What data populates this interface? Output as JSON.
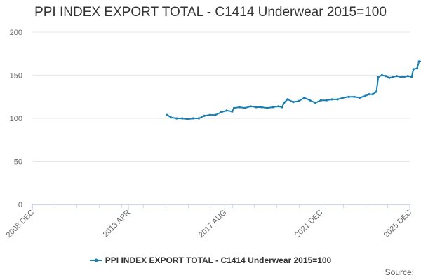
{
  "chart_data": {
    "type": "line",
    "title": "PPI INDEX EXPORT TOTAL - C1414 Underwear 2015=100",
    "xlabel": "",
    "ylabel": "",
    "x_ticks": [
      "2008 DEC",
      "2013 APR",
      "2017 AUG",
      "2021 DEC",
      "2025 DEC"
    ],
    "x_range": [
      "2008 DEC",
      "2025 DEC"
    ],
    "ylim": [
      0,
      200
    ],
    "y_ticks": [
      0,
      50,
      100,
      150,
      200
    ],
    "grid": "horizontal",
    "legend_position": "bottom",
    "series": [
      {
        "name": "PPI INDEX EXPORT TOTAL - C1414 Underwear 2015=100",
        "color": "#1a7eb3",
        "points": [
          [
            "2015-01",
            104
          ],
          [
            "2015-03",
            101
          ],
          [
            "2015-06",
            100
          ],
          [
            "2015-09",
            100
          ],
          [
            "2015-12",
            99
          ],
          [
            "2016-03",
            100
          ],
          [
            "2016-06",
            100
          ],
          [
            "2016-09",
            103
          ],
          [
            "2016-12",
            104
          ],
          [
            "2017-03",
            104
          ],
          [
            "2017-06",
            107
          ],
          [
            "2017-09",
            109
          ],
          [
            "2017-12",
            108
          ],
          [
            "2018-01",
            112
          ],
          [
            "2018-04",
            113
          ],
          [
            "2018-07",
            112
          ],
          [
            "2018-10",
            114
          ],
          [
            "2019-01",
            113
          ],
          [
            "2019-04",
            113
          ],
          [
            "2019-07",
            112
          ],
          [
            "2019-10",
            113
          ],
          [
            "2020-01",
            114
          ],
          [
            "2020-03",
            113
          ],
          [
            "2020-04",
            118
          ],
          [
            "2020-06",
            122
          ],
          [
            "2020-09",
            119
          ],
          [
            "2020-12",
            120
          ],
          [
            "2021-03",
            124
          ],
          [
            "2021-06",
            121
          ],
          [
            "2021-09",
            118
          ],
          [
            "2021-12",
            121
          ],
          [
            "2022-03",
            121
          ],
          [
            "2022-06",
            122
          ],
          [
            "2022-09",
            122
          ],
          [
            "2022-12",
            124
          ],
          [
            "2023-03",
            125
          ],
          [
            "2023-06",
            125
          ],
          [
            "2023-09",
            124
          ],
          [
            "2023-12",
            126
          ],
          [
            "2024-02",
            128
          ],
          [
            "2024-04",
            128
          ],
          [
            "2024-06",
            131
          ],
          [
            "2024-07",
            148
          ],
          [
            "2024-09",
            150
          ],
          [
            "2024-11",
            149
          ],
          [
            "2025-01",
            147
          ],
          [
            "2025-03",
            148
          ],
          [
            "2025-05",
            149
          ],
          [
            "2025-07",
            148
          ],
          [
            "2025-09",
            148
          ],
          [
            "2025-11",
            149
          ],
          [
            "2026-01",
            148
          ],
          [
            "2026-02",
            157
          ],
          [
            "2026-04",
            158
          ],
          [
            "2026-05",
            166
          ],
          [
            "2026-07",
            166
          ],
          [
            "2026-09",
            166
          ],
          [
            "2026-10",
            169
          ],
          [
            "2026-11",
            170
          ],
          [
            "2027-01",
            173
          ],
          [
            "2027-03",
            173
          ],
          [
            "2027-05",
            174
          ],
          [
            "2027-06",
            175
          ],
          [
            "2027-07",
            174
          ]
        ]
      }
    ]
  },
  "source_label": "Source:"
}
